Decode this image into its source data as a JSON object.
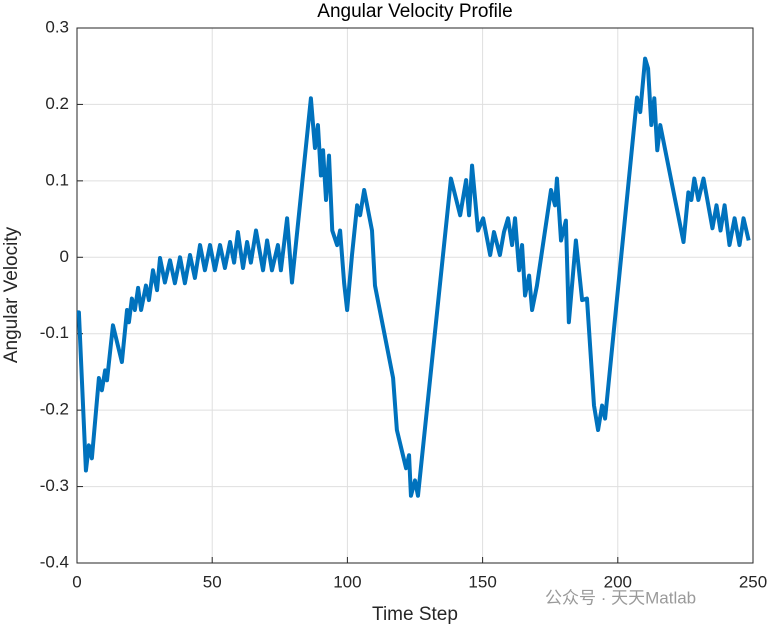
{
  "chart_data": {
    "type": "line",
    "title": "Angular Velocity Profile",
    "x_label": "Time Step",
    "y_label": "Angular Velocity",
    "watermark": "公众号 · 天天Matlab",
    "xlim": [
      0,
      250
    ],
    "xticks": [
      0,
      50,
      100,
      150,
      200,
      250
    ],
    "ylim": [
      -0.4,
      0.3
    ],
    "yticks": [
      -0.4,
      -0.3,
      -0.2,
      -0.1,
      0,
      0.1,
      0.2,
      0.3
    ],
    "grid": true,
    "series": [
      {
        "color": "#0072bd",
        "x": [
          0,
          0.7,
          3.3,
          4.4,
          5.5,
          8.1,
          9.2,
          10.4,
          11.1,
          13.3,
          16.6,
          18.5,
          19.2,
          20.3,
          21.4,
          22.6,
          23.7,
          25.5,
          26.6,
          28.1,
          29.6,
          30.7,
          32.5,
          34.4,
          36.2,
          38.1,
          39.9,
          41.8,
          43.6,
          45.5,
          47.3,
          49.2,
          51,
          52.9,
          54.7,
          56.6,
          58.1,
          59.5,
          61.4,
          62.9,
          64.3,
          66.2,
          68.8,
          70.3,
          72.1,
          74.3,
          75.4,
          77.7,
          79.5,
          86.5,
          88,
          89.1,
          90.2,
          91,
          92.1,
          93.2,
          94.4,
          96.2,
          97.3,
          98.8,
          99.9,
          101.7,
          103.6,
          104.7,
          106.2,
          109.1,
          110.2,
          116.9,
          118.3,
          121.7,
          122.8,
          123.5,
          125,
          126.1,
          138.3,
          141.7,
          143.9,
          145,
          146.1,
          148.3,
          150.2,
          152.8,
          154.2,
          156.4,
          157.9,
          159.4,
          160.9,
          162,
          163.5,
          164.6,
          165.7,
          167.2,
          168.3,
          170.1,
          175.3,
          176.8,
          177.5,
          179,
          180.8,
          181.9,
          184.5,
          186.8,
          188.6,
          191.2,
          192.7,
          194.2,
          195.3,
          207.1,
          208.3,
          210.1,
          211.2,
          212.4,
          213.5,
          214.6,
          215.7,
          224.3,
          226.1,
          227.2,
          228.3,
          229.8,
          231.7,
          235,
          236.5,
          238,
          239.5,
          241.3,
          243.2,
          245,
          246.5,
          248.4
        ],
        "values": [
          -0.072,
          -0.072,
          -0.279,
          -0.246,
          -0.263,
          -0.158,
          -0.174,
          -0.148,
          -0.161,
          -0.089,
          -0.137,
          -0.069,
          -0.085,
          -0.054,
          -0.069,
          -0.04,
          -0.069,
          -0.037,
          -0.056,
          -0.017,
          -0.043,
          -0.001,
          -0.033,
          -0.004,
          -0.034,
          0,
          -0.034,
          0.003,
          -0.027,
          0.016,
          -0.017,
          0.016,
          -0.017,
          0.016,
          -0.014,
          0.02,
          -0.007,
          0.033,
          -0.014,
          0.02,
          -0.007,
          0.035,
          -0.017,
          0.022,
          -0.017,
          0.016,
          -0.017,
          0.051,
          -0.033,
          0.208,
          0.143,
          0.173,
          0.107,
          0.14,
          0.075,
          0.133,
          0.035,
          0.016,
          0.035,
          -0.034,
          -0.069,
          0.003,
          0.068,
          0.055,
          0.088,
          0.035,
          -0.037,
          -0.158,
          -0.226,
          -0.276,
          -0.259,
          -0.312,
          -0.292,
          -0.312,
          0.103,
          0.055,
          0.101,
          0.055,
          0.12,
          0.035,
          0.051,
          0.003,
          0.033,
          0.003,
          0.033,
          0.051,
          0.016,
          0.051,
          -0.017,
          0.016,
          -0.05,
          -0.024,
          -0.069,
          -0.037,
          0.088,
          0.068,
          0.103,
          0.022,
          0.048,
          -0.085,
          0.022,
          -0.056,
          -0.054,
          -0.194,
          -0.226,
          -0.194,
          -0.211,
          0.209,
          0.19,
          0.26,
          0.247,
          0.173,
          0.208,
          0.14,
          0.173,
          0.02,
          0.085,
          0.075,
          0.103,
          0.075,
          0.103,
          0.038,
          0.068,
          0.035,
          0.068,
          0.016,
          0.051,
          0.016,
          0.051,
          0.022
        ]
      }
    ]
  }
}
